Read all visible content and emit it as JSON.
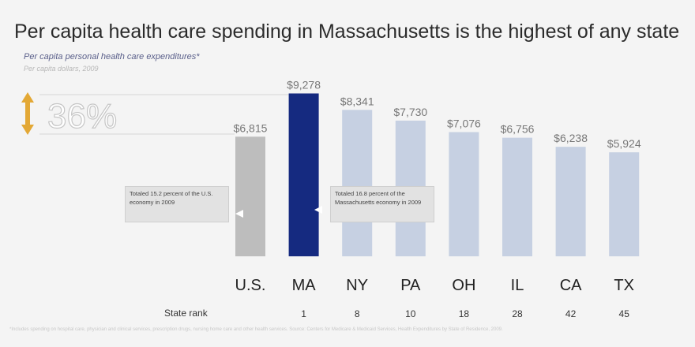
{
  "title": "Per capita health care spending in Massachusetts is the highest of any state",
  "subtitle": "Per capita personal health care expenditures*",
  "subnote": "Per capita dollars, 2009",
  "difference_callout": "36%",
  "us_callout": "Totaled 15.2 percent of the U.S. economy in 2009",
  "ma_callout": "Totaled 16.8 percent of the Massachusetts economy in 2009",
  "rank_label": "State rank",
  "footnote": "*Includes spending on hospital care, physician and clinical services, prescription drugs, nursing home care and other health services. Source: Centers for Medicare & Medicaid Services, Health Expenditures by State of Residence, 2009.",
  "colors": {
    "us": "#bdbdbd",
    "ma": "#152a80",
    "other": "#c6d0e2",
    "arrow": "#e3a835"
  },
  "chart_data": {
    "type": "bar",
    "title": "Per capita health care spending in Massachusetts is the highest of any state",
    "ylabel": "Per capita dollars, 2009",
    "ylim": [
      0,
      9300
    ],
    "categories": [
      "U.S.",
      "MA",
      "NY",
      "PA",
      "OH",
      "IL",
      "CA",
      "TX"
    ],
    "values": [
      6815,
      9278,
      8341,
      7730,
      7076,
      6756,
      6238,
      5924
    ],
    "value_labels": [
      "$6,815",
      "$9,278",
      "$8,341",
      "$7,730",
      "$7,076",
      "$6,756",
      "$6,238",
      "$5,924"
    ],
    "state_rank": [
      "",
      "1",
      "8",
      "10",
      "18",
      "28",
      "42",
      "45"
    ]
  }
}
